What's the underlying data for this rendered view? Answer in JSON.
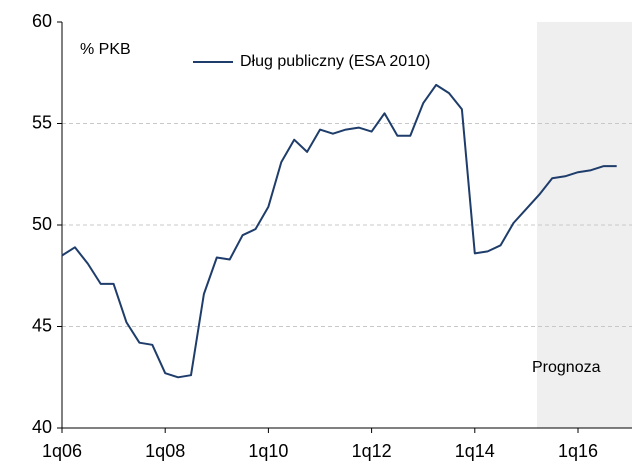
{
  "chart_data": {
    "type": "line",
    "ylabel": "% PKB",
    "annotation": "Prognoza",
    "categories": [
      "1q06",
      null,
      null,
      null,
      null,
      null,
      null,
      null,
      "1q08",
      null,
      null,
      null,
      null,
      null,
      null,
      null,
      "1q10",
      null,
      null,
      null,
      null,
      null,
      null,
      null,
      "1q12",
      null,
      null,
      null,
      null,
      null,
      null,
      null,
      "1q14",
      null,
      null,
      null,
      null,
      null,
      null,
      null,
      "1q16",
      null,
      null,
      null
    ],
    "series": [
      {
        "name": "Dług publiczny (ESA 2010)",
        "color": "#1f3d6b",
        "values": [
          48.5,
          48.9,
          48.1,
          47.1,
          47.1,
          45.2,
          44.2,
          44.1,
          42.7,
          42.5,
          42.6,
          46.6,
          48.4,
          48.3,
          49.5,
          49.8,
          50.9,
          53.1,
          54.2,
          53.6,
          54.7,
          54.5,
          54.7,
          54.8,
          54.6,
          55.5,
          54.4,
          54.4,
          56.0,
          56.9,
          56.5,
          55.7,
          48.6,
          48.7,
          49.0,
          50.1,
          50.8,
          51.5,
          52.3,
          52.4,
          52.6,
          52.7,
          52.9,
          52.9
        ]
      }
    ],
    "ylim": [
      40,
      60
    ],
    "yticks": [
      40,
      45,
      50,
      55,
      60
    ],
    "grid": true
  }
}
